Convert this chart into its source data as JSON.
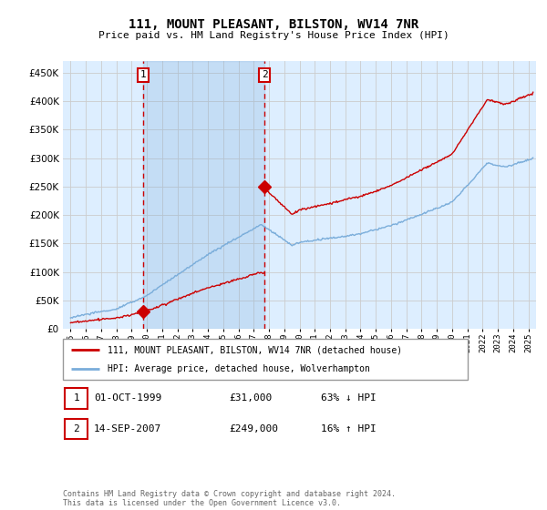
{
  "title": "111, MOUNT PLEASANT, BILSTON, WV14 7NR",
  "subtitle": "Price paid vs. HM Land Registry's House Price Index (HPI)",
  "legend_line1": "111, MOUNT PLEASANT, BILSTON, WV14 7NR (detached house)",
  "legend_line2": "HPI: Average price, detached house, Wolverhampton",
  "annotation1_date": "01-OCT-1999",
  "annotation1_price": "£31,000",
  "annotation1_hpi": "63% ↓ HPI",
  "annotation2_date": "14-SEP-2007",
  "annotation2_price": "£249,000",
  "annotation2_hpi": "16% ↑ HPI",
  "footer": "Contains HM Land Registry data © Crown copyright and database right 2024.\nThis data is licensed under the Open Government Licence v3.0.",
  "sale1_year": 1999.75,
  "sale1_price": 31000,
  "sale2_year": 2007.71,
  "sale2_price": 249000,
  "line_color_red": "#cc0000",
  "line_color_blue": "#7aadda",
  "bg_color": "#ddeeff",
  "annotation_box_color": "#cc0000",
  "ylim_max": 470000,
  "ylim_min": 0,
  "xlim_min": 1994.5,
  "xlim_max": 2025.5
}
